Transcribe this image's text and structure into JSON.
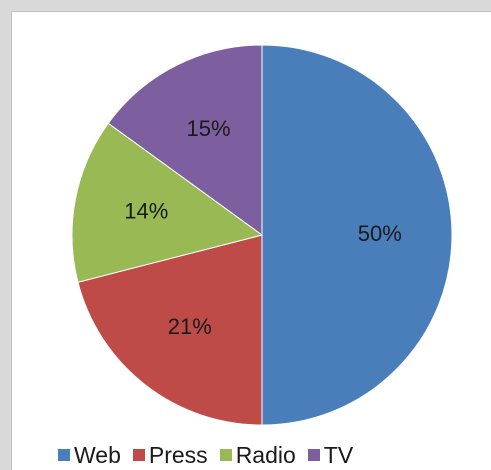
{
  "chart_data": {
    "type": "pie",
    "title": "",
    "slices": [
      {
        "label": "Web",
        "value": 50,
        "display": "50%",
        "color": "#4a7ebb"
      },
      {
        "label": "Press",
        "value": 21,
        "display": "21%",
        "color": "#be4b48"
      },
      {
        "label": "Radio",
        "value": 14,
        "display": "14%",
        "color": "#98b954"
      },
      {
        "label": "TV",
        "value": 15,
        "display": "15%",
        "color": "#7d5fa0"
      }
    ],
    "legend_position": "bottom"
  },
  "legend": {
    "items": [
      {
        "label": "Web",
        "color": "#4a7ebb"
      },
      {
        "label": "Press",
        "color": "#be4b48"
      },
      {
        "label": "Radio",
        "color": "#98b954"
      },
      {
        "label": "TV",
        "color": "#7d5fa0"
      }
    ]
  }
}
